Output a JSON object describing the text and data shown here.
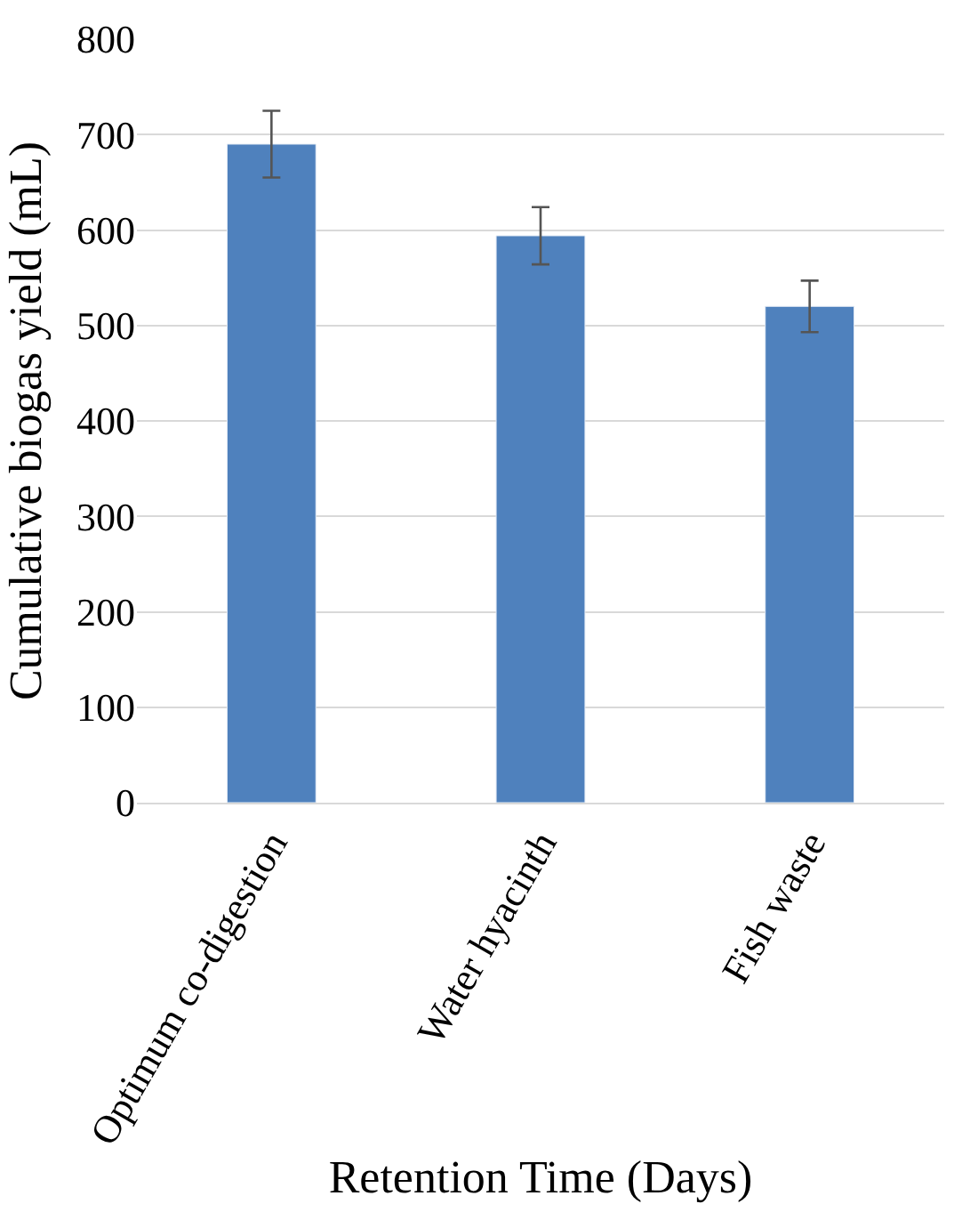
{
  "chart_data": {
    "type": "bar",
    "xlabel": "Retention Time (Days)",
    "ylabel": "Cumulative biogas yield (mL)",
    "categories": [
      "Optimum co-digestion",
      "Water hyacinth",
      "Fish waste"
    ],
    "values": [
      690,
      594,
      520
    ],
    "errors": [
      35,
      30,
      27
    ],
    "color": "#4f81bd",
    "ylim": [
      0,
      800
    ],
    "yticks": [
      0,
      100,
      200,
      300,
      400,
      500,
      600,
      700,
      800
    ],
    "grid": "y",
    "legend": false
  }
}
